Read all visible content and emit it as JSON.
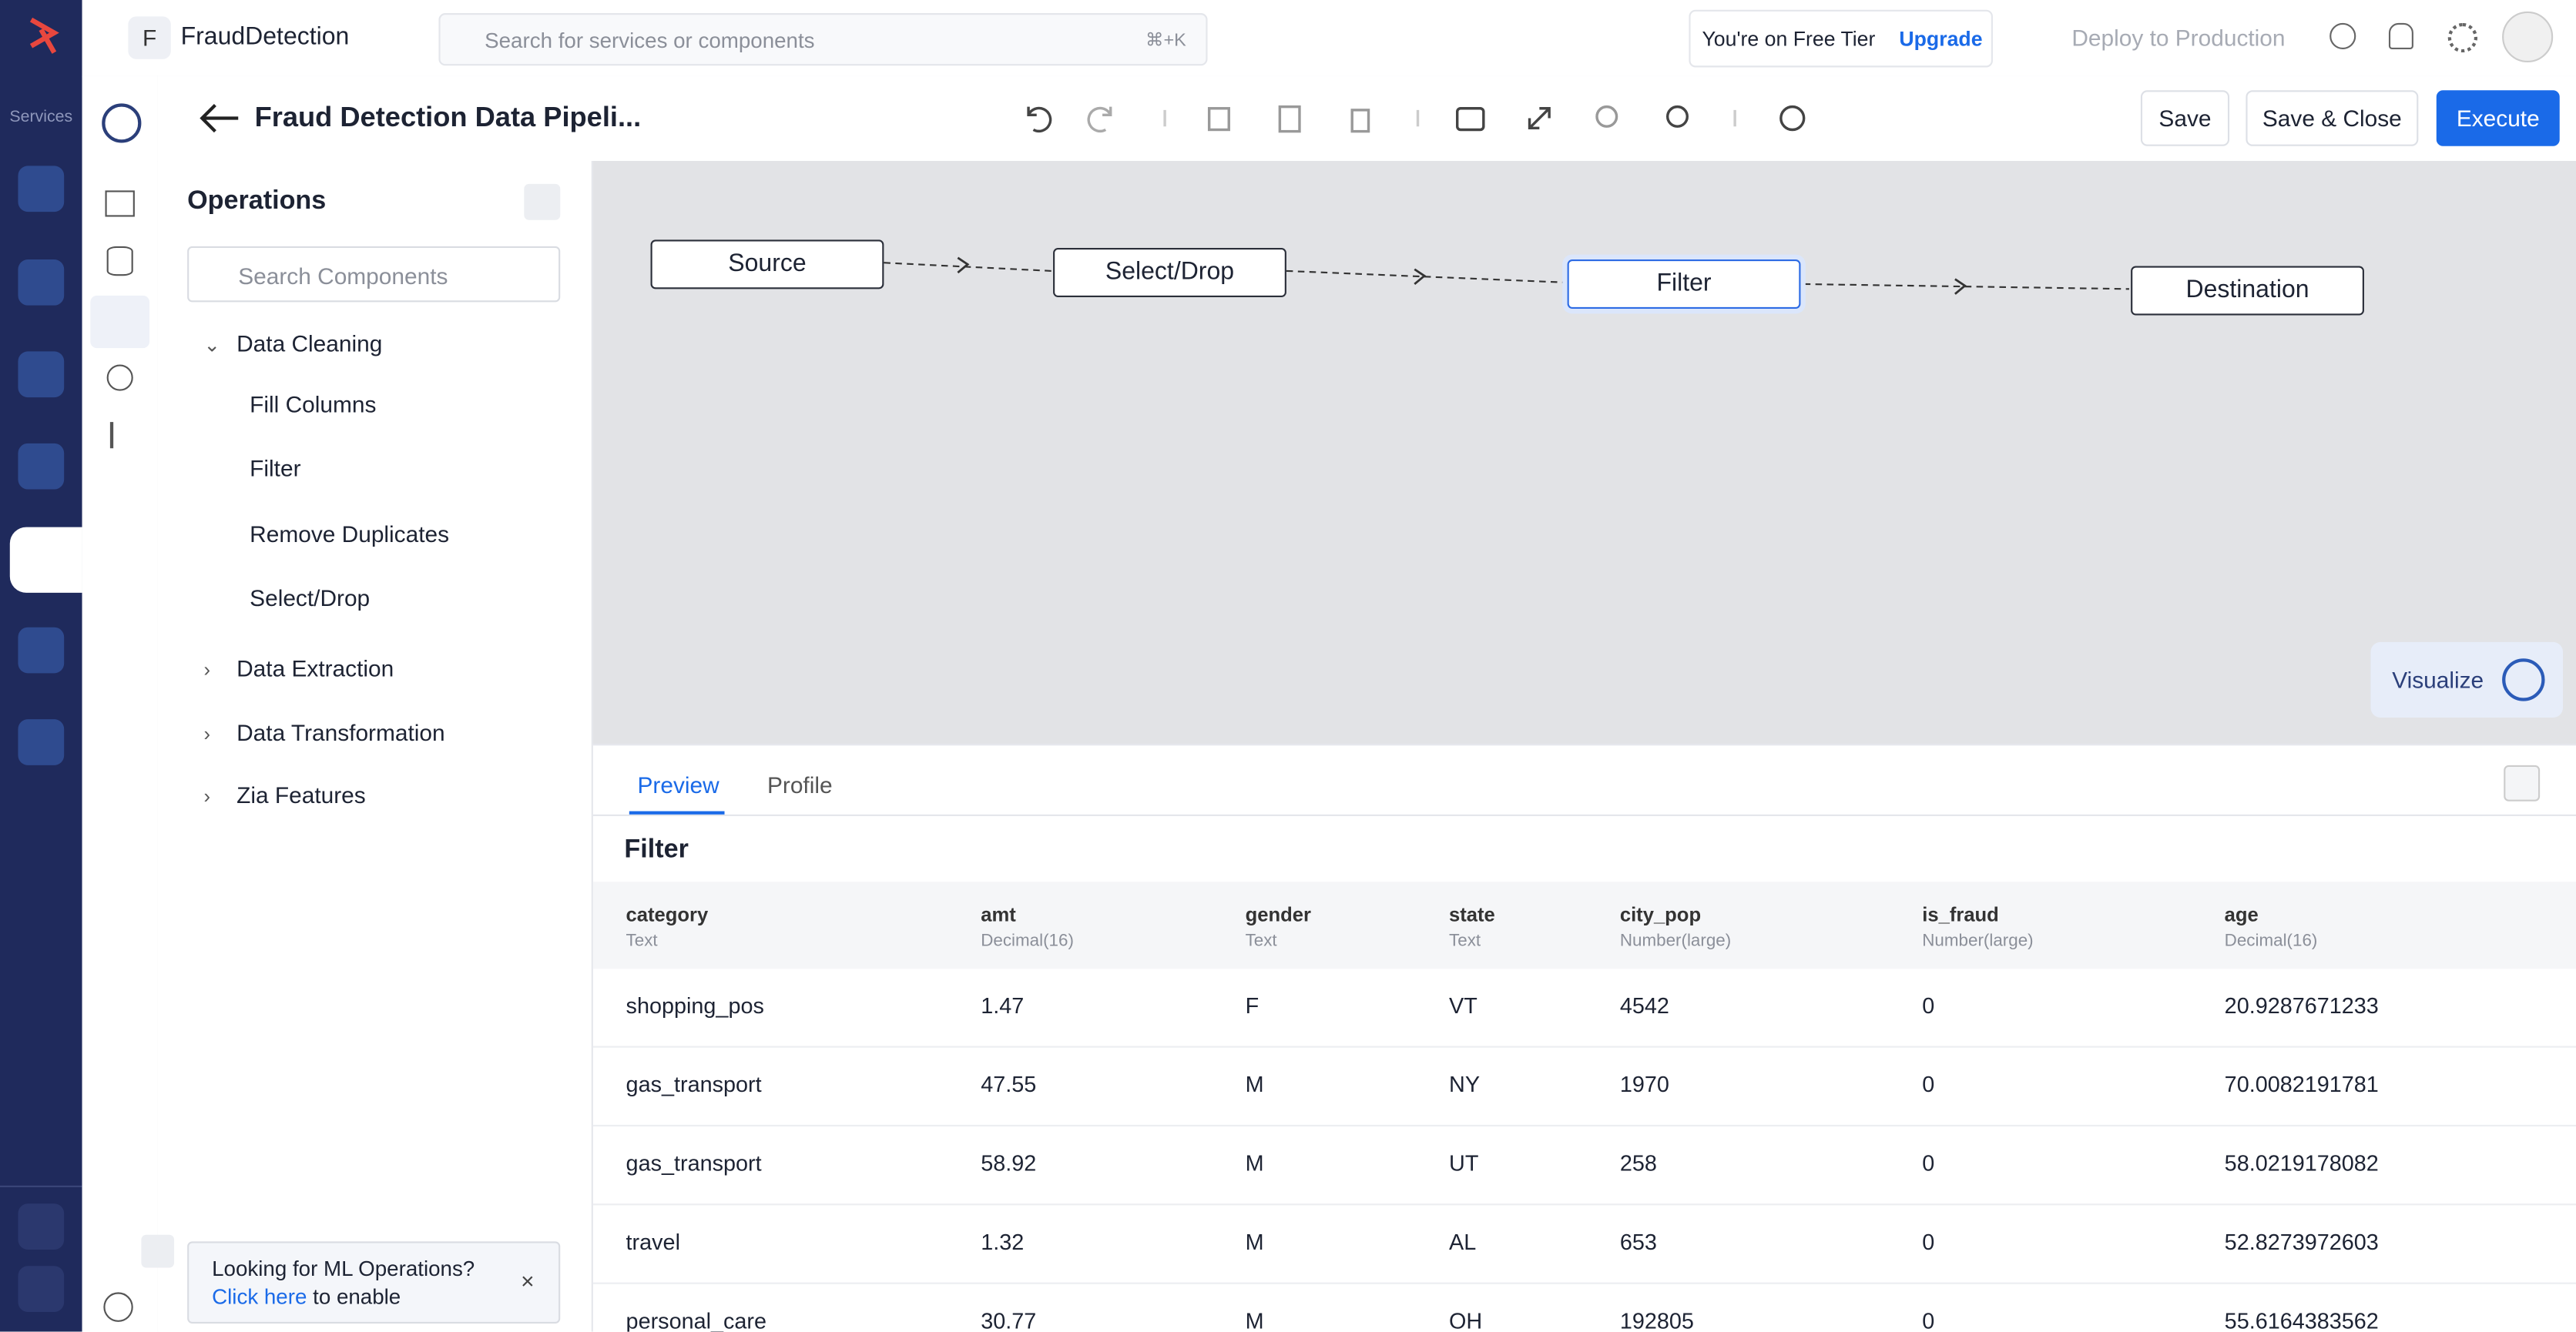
{
  "app": {
    "workspace_initial": "F",
    "workspace": "FraudDetection",
    "search_placeholder": "Search for services or components",
    "search_shortcut": "⌘+K",
    "tier_notice": "You're on Free Tier",
    "upgrade": "Upgrade",
    "deploy": "Deploy to Production"
  },
  "sidebar": {
    "services": "Services"
  },
  "pipeline": {
    "title": "Fraud Detection Data Pipeli...",
    "save": "Save",
    "save_close": "Save & Close",
    "execute": "Execute"
  },
  "operations": {
    "title": "Operations",
    "search_placeholder": "Search Components",
    "groups": [
      {
        "name": "Data Cleaning",
        "items": [
          "Fill Columns",
          "Filter",
          "Remove Duplicates",
          "Select/Drop"
        ]
      },
      {
        "name": "Data Extraction",
        "items": []
      },
      {
        "name": "Data Transformation",
        "items": []
      },
      {
        "name": "Zia Features",
        "items": []
      }
    ]
  },
  "canvas": {
    "nodes": [
      "Source",
      "Select/Drop",
      "Filter",
      "Destination"
    ],
    "visualize": "Visualize"
  },
  "preview": {
    "tabs": [
      "Preview",
      "Profile"
    ],
    "heading": "Filter",
    "columns": [
      {
        "name": "category",
        "type": "Text"
      },
      {
        "name": "amt",
        "type": "Decimal(16)"
      },
      {
        "name": "gender",
        "type": "Text"
      },
      {
        "name": "state",
        "type": "Text"
      },
      {
        "name": "city_pop",
        "type": "Number(large)"
      },
      {
        "name": "is_fraud",
        "type": "Number(large)"
      },
      {
        "name": "age",
        "type": "Decimal(16)"
      }
    ],
    "rows": [
      [
        "shopping_pos",
        "1.47",
        "F",
        "VT",
        "4542",
        "0",
        "20.9287671233"
      ],
      [
        "gas_transport",
        "47.55",
        "M",
        "NY",
        "1970",
        "0",
        "70.0082191781"
      ],
      [
        "gas_transport",
        "58.92",
        "M",
        "UT",
        "258",
        "0",
        "58.0219178082"
      ],
      [
        "travel",
        "1.32",
        "M",
        "AL",
        "653",
        "0",
        "52.8273972603"
      ],
      [
        "personal_care",
        "30.77",
        "M",
        "OH",
        "192805",
        "0",
        "55.6164383562"
      ]
    ]
  },
  "banner": {
    "text": "Looking for ML Operations?",
    "link": "Click here",
    "suffix": "to enable"
  }
}
